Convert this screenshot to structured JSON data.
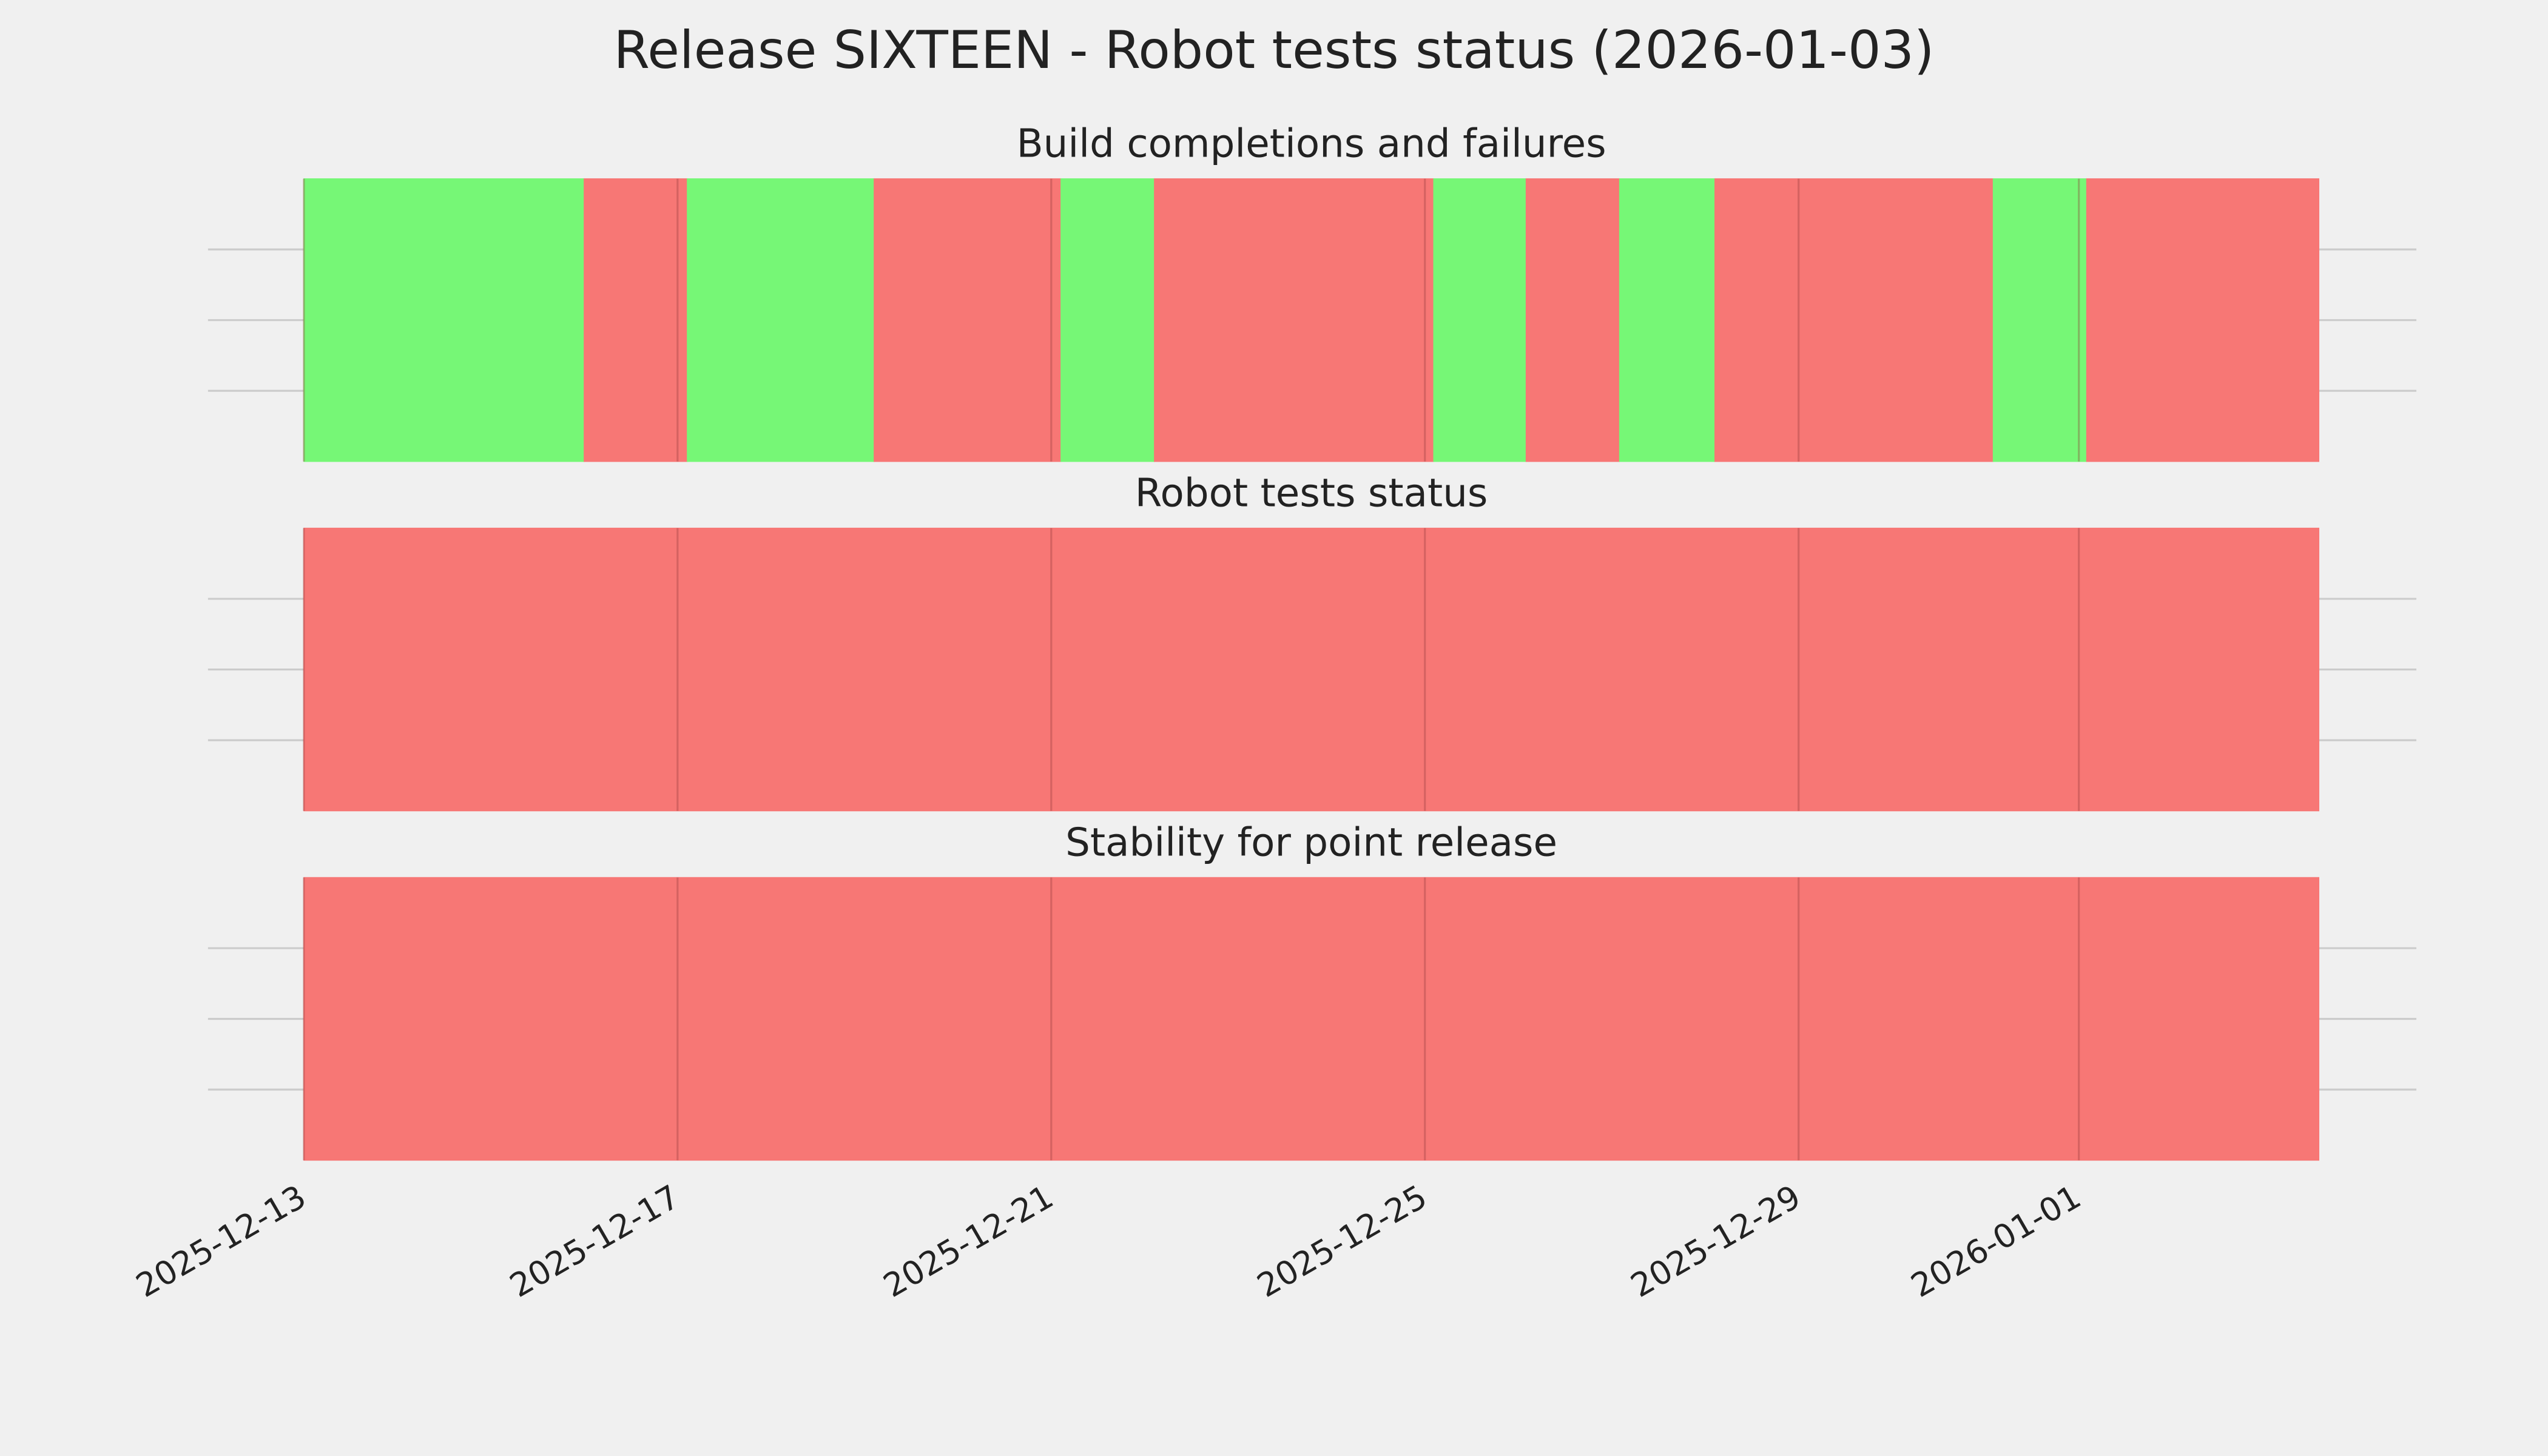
{
  "title": "Release SIXTEEN - Robot tests status (2026-01-03)",
  "chart_data": [
    {
      "type": "timeline",
      "title": "Build completions and failures",
      "xlim": [
        "2025-12-13",
        "2026-01-03T13:40"
      ],
      "xticks": [
        "2025-12-13",
        "2025-12-17",
        "2025-12-21",
        "2025-12-25",
        "2025-12-29",
        "2026-01-01"
      ],
      "grid": true,
      "segments": [
        {
          "start": "2025-12-13",
          "end": "2025-12-16T00:00",
          "color": "#76f776"
        },
        {
          "start": "2025-12-16T00:00",
          "end": "2025-12-17T02:30",
          "color": "#f77775"
        },
        {
          "start": "2025-12-17T02:30",
          "end": "2025-12-19T02:30",
          "color": "#76f776"
        },
        {
          "start": "2025-12-19T02:30",
          "end": "2025-12-21T02:30",
          "color": "#f77775"
        },
        {
          "start": "2025-12-21T02:30",
          "end": "2025-12-22T02:30",
          "color": "#76f776"
        },
        {
          "start": "2025-12-22T02:30",
          "end": "2025-12-25T02:15",
          "color": "#f77775"
        },
        {
          "start": "2025-12-25T02:15",
          "end": "2025-12-26T02:00",
          "color": "#76f776"
        },
        {
          "start": "2025-12-26T02:00",
          "end": "2025-12-27T02:00",
          "color": "#f77775"
        },
        {
          "start": "2025-12-27T02:00",
          "end": "2025-12-28T02:30",
          "color": "#76f776"
        },
        {
          "start": "2025-12-28T02:30",
          "end": "2025-12-31T02:00",
          "color": "#f77775"
        },
        {
          "start": "2025-12-31T02:00",
          "end": "2026-01-01T02:00",
          "color": "#76f776"
        },
        {
          "start": "2026-01-01T02:00",
          "end": "2026-01-03T13:40",
          "color": "#f77775"
        }
      ]
    },
    {
      "type": "timeline",
      "title": "Robot tests status",
      "xlim": [
        "2025-12-13",
        "2026-01-03T13:40"
      ],
      "xticks": [
        "2025-12-13",
        "2025-12-17",
        "2025-12-21",
        "2025-12-25",
        "2025-12-29",
        "2026-01-01"
      ],
      "grid": true,
      "segments": [
        {
          "start": "2025-12-13",
          "end": "2026-01-03T13:40",
          "color": "#f77775"
        }
      ]
    },
    {
      "type": "timeline",
      "title": "Stability for point release",
      "xlim": [
        "2025-12-13",
        "2026-01-03T13:40"
      ],
      "xticks": [
        "2025-12-13",
        "2025-12-17",
        "2025-12-21",
        "2025-12-25",
        "2025-12-29",
        "2026-01-01"
      ],
      "grid": true,
      "segments": [
        {
          "start": "2025-12-13",
          "end": "2026-01-03T13:40",
          "color": "#f77775"
        }
      ]
    }
  ]
}
